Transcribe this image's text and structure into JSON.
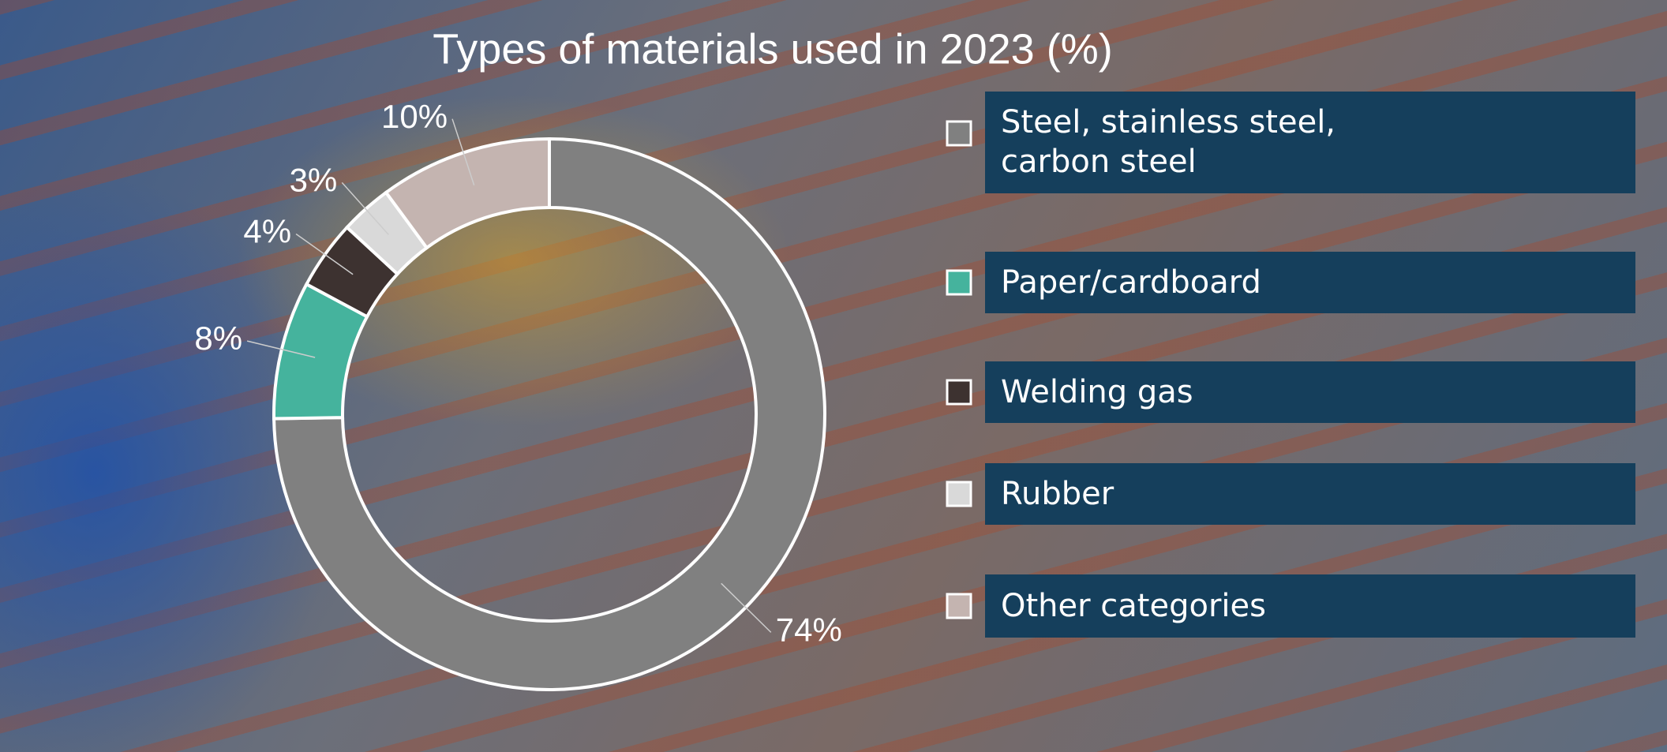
{
  "chart_data": {
    "type": "pie",
    "title": "Types of materials used in 2023 (%)",
    "categories": [
      "Steel, stainless steel, carbon steel",
      "Paper/cardboard",
      "Welding gas",
      "Rubber",
      "Other categories"
    ],
    "values": [
      74,
      8,
      4,
      3,
      10
    ],
    "value_labels": [
      "74%",
      "8%",
      "4%",
      "3%",
      "10%"
    ],
    "colors": [
      "#808080",
      "#45b39d",
      "#3d3230",
      "#d9d9d9",
      "#c4b4b0"
    ],
    "legend": "right"
  }
}
